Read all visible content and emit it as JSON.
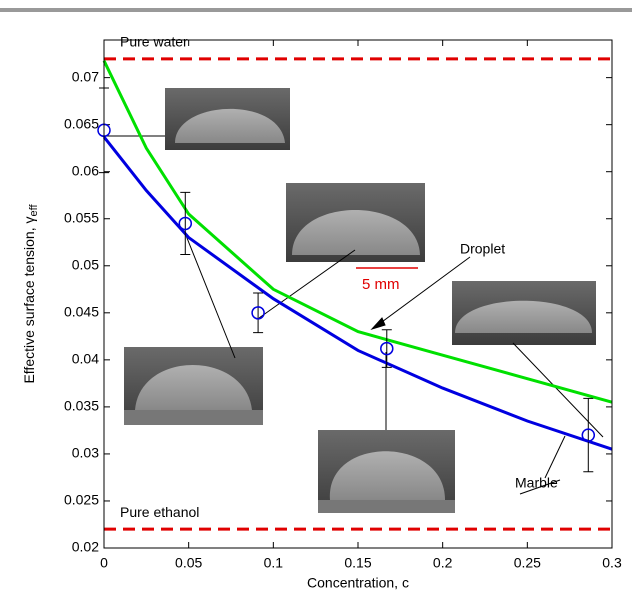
{
  "chart_data": {
    "type": "line",
    "xlabel": "Concentration, c",
    "ylabel": "Effective surface tension, γ",
    "ylabel_sub": "eff",
    "xlim": [
      0,
      0.3
    ],
    "ylim": [
      0.02,
      0.074
    ],
    "xticks": [
      0,
      0.05,
      0.1,
      0.15,
      0.2,
      0.25,
      0.3
    ],
    "yticks": [
      0.02,
      0.025,
      0.03,
      0.035,
      0.04,
      0.045,
      0.05,
      0.055,
      0.06,
      0.065,
      0.07
    ],
    "series": [
      {
        "name": "Droplet",
        "color": "#00e000",
        "x": [
          0,
          0.025,
          0.05,
          0.1,
          0.15,
          0.2,
          0.25,
          0.3
        ],
        "values": [
          0.0718,
          0.0625,
          0.0555,
          0.0475,
          0.043,
          0.0405,
          0.038,
          0.0355
        ]
      },
      {
        "name": "Marble",
        "color": "#0000e0",
        "x": [
          0,
          0.025,
          0.05,
          0.1,
          0.15,
          0.2,
          0.25,
          0.3
        ],
        "values": [
          0.0637,
          0.058,
          0.053,
          0.0465,
          0.041,
          0.037,
          0.0335,
          0.0305
        ]
      }
    ],
    "measured": {
      "color": "#0000e0",
      "x": [
        0,
        0.048,
        0.091,
        0.167,
        0.286
      ],
      "values": [
        0.0644,
        0.0545,
        0.045,
        0.0412,
        0.032
      ],
      "errors": [
        0.0045,
        0.0033,
        0.0021,
        0.002,
        0.0039
      ]
    },
    "reference_lines": [
      {
        "label": "Pure water",
        "value": 0.072,
        "color": "#e00000"
      },
      {
        "label": "Pure ethanol",
        "value": 0.022,
        "color": "#e00000"
      }
    ],
    "scale_bar": "5 mm"
  }
}
